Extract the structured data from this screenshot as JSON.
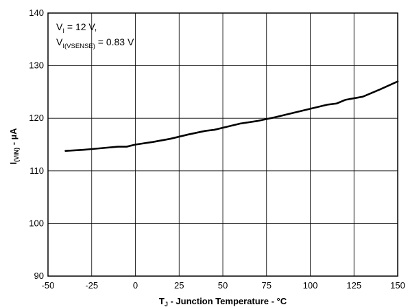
{
  "chart_data": {
    "type": "line",
    "title": "",
    "xlabel": {
      "main": "T",
      "sub": "J",
      "rest": " - Junction Temperature - °C"
    },
    "ylabel": {
      "main": "I",
      "sub": "(VIN)",
      "rest": " - µA"
    },
    "xlim": [
      -50,
      150
    ],
    "ylim": [
      90,
      140
    ],
    "x_ticks": [
      -50,
      -25,
      0,
      25,
      50,
      75,
      100,
      125,
      150
    ],
    "y_ticks": [
      90,
      100,
      110,
      120,
      130,
      140
    ],
    "grid": true,
    "legend": "none",
    "annotations": [
      {
        "main": "V",
        "sub": "I",
        "rest": " = 12 V,"
      },
      {
        "main": "V",
        "sub": "I(VSENSE)",
        "rest": " = 0.83 V"
      }
    ],
    "series": [
      {
        "color": "#000000",
        "x": [
          -40,
          -30,
          -20,
          -10,
          -5,
          0,
          10,
          20,
          30,
          40,
          45,
          50,
          60,
          70,
          80,
          90,
          100,
          110,
          115,
          120,
          130,
          140,
          150
        ],
        "y": [
          113.8,
          114.0,
          114.3,
          114.6,
          114.6,
          115.0,
          115.5,
          116.1,
          116.9,
          117.6,
          117.8,
          118.2,
          119.0,
          119.5,
          120.2,
          121.0,
          121.8,
          122.6,
          122.8,
          123.5,
          124.1,
          125.5,
          127.0
        ]
      }
    ]
  }
}
